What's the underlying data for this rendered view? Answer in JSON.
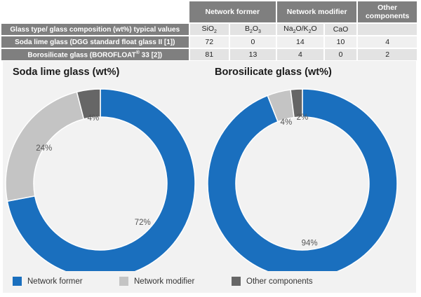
{
  "table": {
    "group_headers": [
      "Network former",
      "Network modifier",
      "Other components"
    ],
    "first_col_header": "Glass type/ glass composition (wt%) typical values",
    "oxides": [
      {
        "main": "SiO",
        "sub": "2"
      },
      {
        "main": "B",
        "sub": "2",
        "rest": "O",
        "sub2": "3"
      },
      {
        "main": "Na",
        "sub": "2",
        "rest": "O/K",
        "sub2": "2",
        "tail": "O"
      },
      {
        "main": "CaO"
      }
    ],
    "rows": [
      {
        "label": "Soda lime glass (DGG standard float glass II [1])",
        "values": [
          "72",
          "0",
          "14",
          "10",
          "4"
        ]
      },
      {
        "label_pre": "Borosilicate glass (BOROFLOAT",
        "label_sup": "®",
        "label_post": " 33 [2])",
        "values": [
          "81",
          "13",
          "4",
          "0",
          "2"
        ]
      }
    ]
  },
  "colors": {
    "former": "#1a6fbe",
    "modifier": "#c4c4c4",
    "other": "#666666"
  },
  "chart_data": [
    {
      "type": "pie",
      "title": "Soda lime glass (wt%)",
      "categories": [
        "Network former",
        "Network modifier",
        "Other components"
      ],
      "values": [
        72,
        24,
        4
      ],
      "labels": [
        "72%",
        "24%",
        "4%"
      ]
    },
    {
      "type": "pie",
      "title": "Borosilicate glass (wt%)",
      "categories": [
        "Network former",
        "Network modifier",
        "Other components"
      ],
      "values": [
        94,
        4,
        2
      ],
      "labels": [
        "94%",
        "4%",
        "2%"
      ]
    }
  ],
  "legend": [
    {
      "label": "Network former",
      "key": "former"
    },
    {
      "label": "Network modifier",
      "key": "modifier"
    },
    {
      "label": "Other components",
      "key": "other"
    }
  ]
}
